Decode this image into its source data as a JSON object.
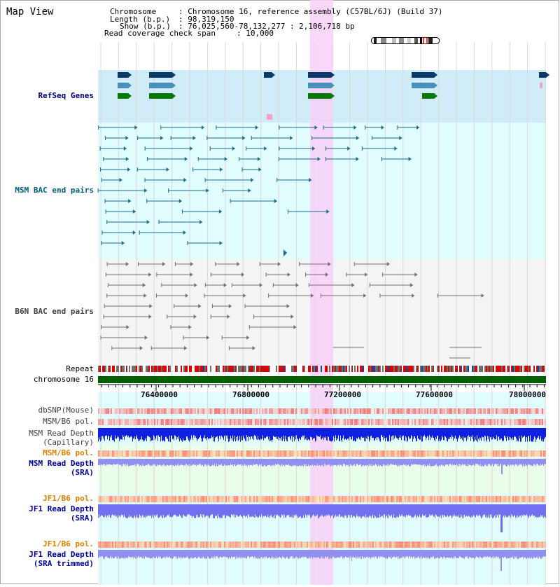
{
  "title": "Map View",
  "header": {
    "chromosome_key": "Chromosome",
    "chromosome_val": ": Chromosome 16, reference assembly (C57BL/6J) (Build 37)",
    "length_key": "Length (b.p.)",
    "length_val": ": 98,319,150",
    "show_key": "Show (b.p.)",
    "show_val": ": 76,025,560-78,132,277 : 2,106,718 bp",
    "coverage_key": "Read coverage check span",
    "coverage_val": ": 10,000"
  },
  "tracks": {
    "refseq": {
      "label": "RefSeq Genes",
      "color": "#000080"
    },
    "msm_bac": {
      "label": "MSM BAC end pairs",
      "color": "#006080"
    },
    "b6n_bac": {
      "label": "B6N BAC end pairs",
      "color": "#404040"
    },
    "repeat": {
      "label": "Repeat"
    },
    "chromosome": {
      "label": "chromosome 16"
    },
    "dbsnp": {
      "label": "dbSNP(Mouse)"
    },
    "msm_b6_pol_1": {
      "label": "MSM/B6 pol."
    },
    "msm_depth_cap_1": {
      "label": "MSM Read Depth"
    },
    "msm_depth_cap_2": {
      "label": "(Capillary)"
    },
    "msm_b6_pol_2": {
      "label": "MSM/B6 pol.",
      "color": "#e08000"
    },
    "msm_depth_sra_1": {
      "label": "MSM Read Depth",
      "color": "#0000a0"
    },
    "msm_depth_sra_2": {
      "label": "(SRA)",
      "color": "#0000a0"
    },
    "jf1_b6_pol_1": {
      "label": "JF1/B6 pol.",
      "color": "#e08000"
    },
    "jf1_depth_sra_1": {
      "label": "JF1 Read Depth",
      "color": "#0000a0"
    },
    "jf1_depth_sra_2": {
      "label": "(SRA)",
      "color": "#0000a0"
    },
    "jf1_b6_pol_2": {
      "label": "JF1/B6 pol.",
      "color": "#e08000"
    },
    "jf1_depth_trim_1": {
      "label": "JF1 Read Depth",
      "color": "#0000a0"
    },
    "jf1_depth_trim_2": {
      "label": "(SRA trimmed)",
      "color": "#0000a0"
    }
  },
  "axis": {
    "ticks": [
      "76400000",
      "76800000",
      "77200000",
      "77600000",
      "78000000"
    ]
  },
  "colors": {
    "highlight": "#f8d0f8",
    "refseq_bg": "#d0ecf8",
    "msm_bg": "#e0fcfc",
    "b6n_bg": "#f4f4f4",
    "track_bg": "#e0fcfc",
    "sra_bg": "#eafcea"
  }
}
